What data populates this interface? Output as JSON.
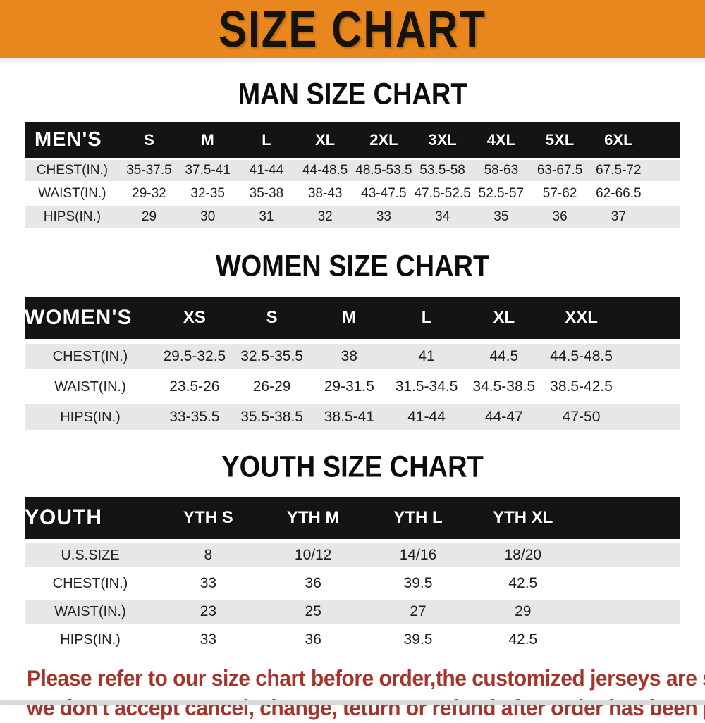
{
  "banner": {
    "title": "SIZE CHART"
  },
  "sections": [
    {
      "heading": "MAN SIZE CHART",
      "label": "MEN'S",
      "columns": [
        "S",
        "M",
        "L",
        "XL",
        "2XL",
        "3XL",
        "4XL",
        "5XL",
        "6XL"
      ],
      "rows": [
        {
          "label": "CHEST(IN.)",
          "values": [
            "35-37.5",
            "37.5-41",
            "41-44",
            "44-48.5",
            "48.5-53.5",
            "53.5-58",
            "58-63",
            "63-67.5",
            "67.5-72"
          ]
        },
        {
          "label": "WAIST(IN.)",
          "values": [
            "29-32",
            "32-35",
            "35-38",
            "38-43",
            "43-47.5",
            "47.5-52.5",
            "52.5-57",
            "57-62",
            "62-66.5"
          ]
        },
        {
          "label": "HIPS(IN.)",
          "values": [
            "29",
            "30",
            "31",
            "32",
            "33",
            "34",
            "35",
            "36",
            "37"
          ]
        }
      ]
    },
    {
      "heading": "WOMEN SIZE CHART",
      "label": "WOMEN'S",
      "columns": [
        "XS",
        "S",
        "M",
        "L",
        "XL",
        "XXL"
      ],
      "rows": [
        {
          "label": "CHEST(IN.)",
          "values": [
            "29.5-32.5",
            "32.5-35.5",
            "38",
            "41",
            "44.5",
            "44.5-48.5"
          ]
        },
        {
          "label": "WAIST(IN.)",
          "values": [
            "23.5-26",
            "26-29",
            "29-31.5",
            "31.5-34.5",
            "34.5-38.5",
            "38.5-42.5"
          ]
        },
        {
          "label": "HIPS(IN.)",
          "values": [
            "33-35.5",
            "35.5-38.5",
            "38.5-41",
            "41-44",
            "44-47",
            "47-50"
          ]
        }
      ]
    },
    {
      "heading": "YOUTH SIZE CHART",
      "label": "YOUTH",
      "columns": [
        "YTH S",
        "YTH M",
        "YTH L",
        "YTH XL"
      ],
      "rows": [
        {
          "label": "U.S.SIZE",
          "values": [
            "8",
            "10/12",
            "14/16",
            "18/20"
          ]
        },
        {
          "label": "CHEST(IN.)",
          "values": [
            "33",
            "36",
            "39.5",
            "42.5"
          ]
        },
        {
          "label": "WAIST(IN.)",
          "values": [
            "23",
            "25",
            "27",
            "29"
          ]
        },
        {
          "label": "HIPS(IN.)",
          "values": [
            "33",
            "36",
            "39.5",
            "42.5"
          ]
        }
      ]
    }
  ],
  "disclaimer": {
    "line1": "Please refer to our size chart before order,the customized jerseys are special products,",
    "line2": "we don't accept cancel, change, teturn or refund after order has been placed!"
  },
  "colors": {
    "banner_bg": "#E8871E",
    "header_bar": "#141414",
    "row_stripe": "#E7E7E7",
    "disclaimer_red": "#A5342B"
  }
}
